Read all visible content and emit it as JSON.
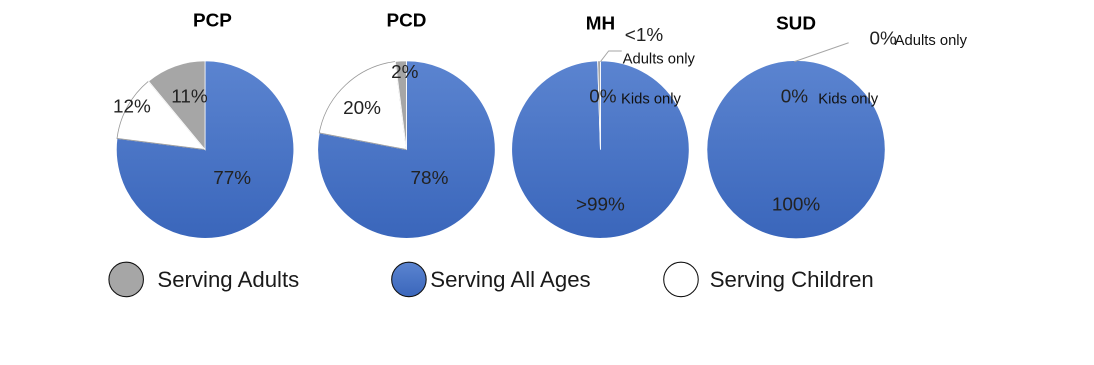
{
  "chart_data": {
    "type": "pie",
    "legend_position": "bottom",
    "colors": {
      "Serving Adults": "#a6a6a6",
      "Serving All Ages": "#4472c4",
      "Serving Children": "#ffffff"
    },
    "legend": [
      "Serving Adults",
      "Serving All Ages",
      "Serving Children"
    ],
    "charts": [
      {
        "title": "PCP",
        "slices": [
          {
            "name": "Serving All Ages",
            "value": 77,
            "label": "77%"
          },
          {
            "name": "Serving Children",
            "value": 12,
            "label": "12%"
          },
          {
            "name": "Serving Adults",
            "value": 11,
            "label": "11%"
          }
        ]
      },
      {
        "title": "PCD",
        "slices": [
          {
            "name": "Serving All Ages",
            "value": 78,
            "label": "78%"
          },
          {
            "name": "Serving Children",
            "value": 20,
            "label": "20%"
          },
          {
            "name": "Serving Adults",
            "value": 2,
            "label": "2%"
          }
        ]
      },
      {
        "title": "MH",
        "slices": [
          {
            "name": "Serving All Ages",
            "value": 99.5,
            "label": ">99%"
          },
          {
            "name": "Serving Adults",
            "value": 0.5,
            "label": "<1%",
            "note": "Adults only"
          },
          {
            "name": "Serving Children",
            "value": 0,
            "label": "0%",
            "note": "Kids only"
          }
        ]
      },
      {
        "title": "SUD",
        "slices": [
          {
            "name": "Serving All Ages",
            "value": 100,
            "label": "100%"
          },
          {
            "name": "Serving Adults",
            "value": 0,
            "label": "0%",
            "note": "Adults only"
          },
          {
            "name": "Serving Children",
            "value": 0,
            "label": "0%",
            "note": "Kids only"
          }
        ]
      }
    ]
  }
}
